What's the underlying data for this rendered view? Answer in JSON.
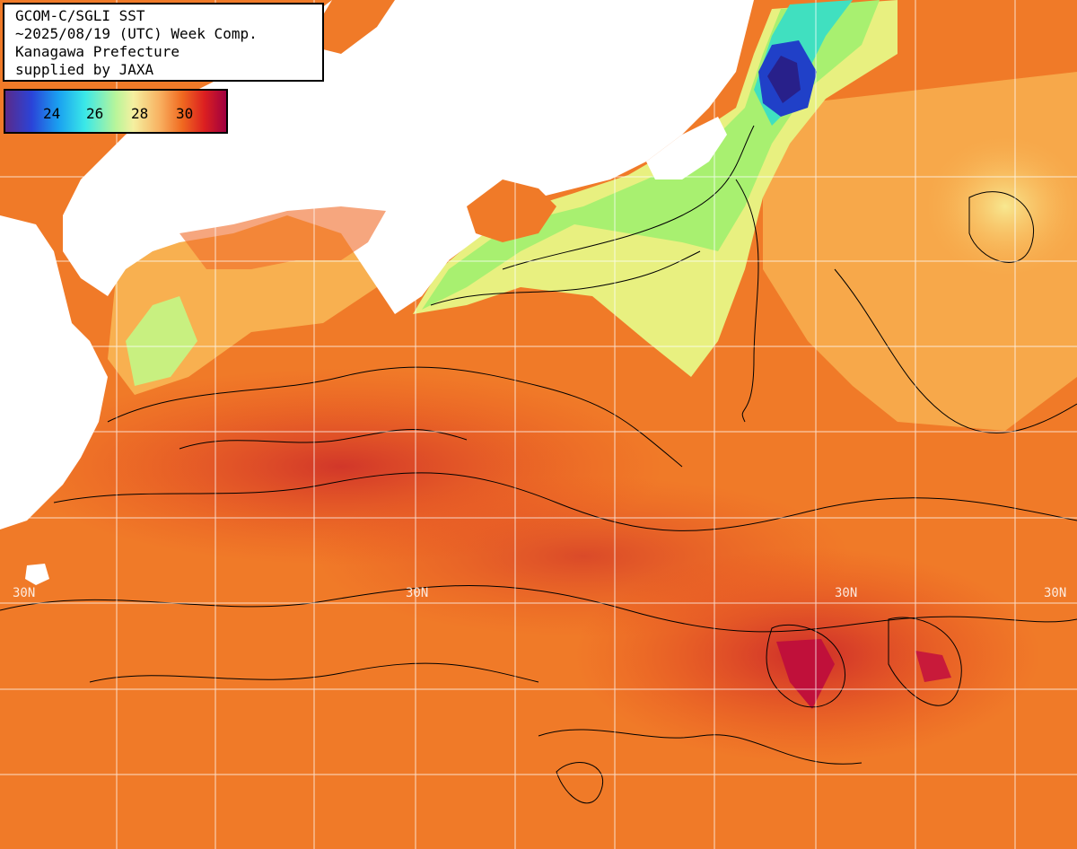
{
  "header": {
    "line1": "GCOM-C/SGLI SST",
    "line2": "~2025/08/19 (UTC) Week Comp.",
    "line3": "Kanagawa Prefecture",
    "line4": "supplied by JAXA"
  },
  "colorbar": {
    "ticks": [
      "24",
      "26",
      "28",
      "30"
    ]
  },
  "latitude_labels": {
    "left": "30N",
    "mid1": "30N",
    "mid2": "30N",
    "right": "30N"
  },
  "colors": {
    "land": "#ffffff",
    "warm_sea": "#f07a28",
    "hot_sea": "#d8301e",
    "cool_sea": "#b8f070",
    "cold_sea": "#2040c8",
    "grid": "#ffffff",
    "contour": "#000000"
  }
}
